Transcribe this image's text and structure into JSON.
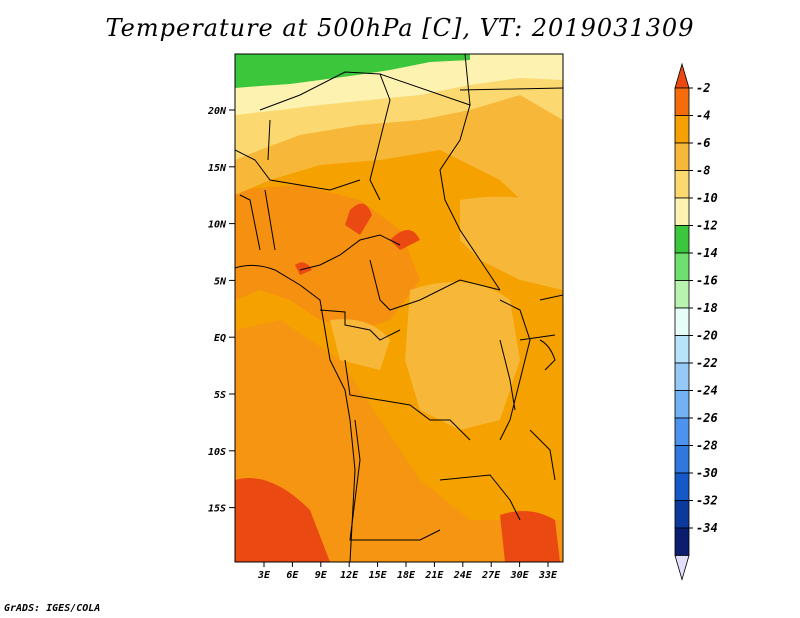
{
  "title": "Temperature at 500hPa [C], VT: 2019031309",
  "footer": "GrADS: IGES/COLA",
  "map": {
    "lat_labels": [
      "20N",
      "15N",
      "10N",
      "5N",
      "EQ",
      "5S",
      "10S",
      "15S"
    ],
    "lon_labels": [
      "3E",
      "6E",
      "9E",
      "12E",
      "15E",
      "18E",
      "21E",
      "24E",
      "27E",
      "30E",
      "33E"
    ]
  },
  "colorbar": {
    "labels": [
      "-2",
      "-4",
      "-6",
      "-8",
      "-10",
      "-12",
      "-14",
      "-16",
      "-18",
      "-20",
      "-22",
      "-24",
      "-26",
      "-28",
      "-30",
      "-32",
      "-34"
    ],
    "colors": [
      "#ea4a12",
      "#f56d0a",
      "#f5a100",
      "#f7b83a",
      "#fbd870",
      "#fdf2b0",
      "#3bc63b",
      "#6fe06f",
      "#b8f3b0",
      "#e7fdf9",
      "#b7e4fb",
      "#96c9f5",
      "#73b1f5",
      "#4b93ee",
      "#2e78de",
      "#1459c7",
      "#0c3a9c",
      "#0b1d6e",
      "#e1dffb"
    ],
    "color_names": {
      "top_arrow": "#ea4a12",
      "bottom_arrow": "#e1dffb"
    }
  }
}
